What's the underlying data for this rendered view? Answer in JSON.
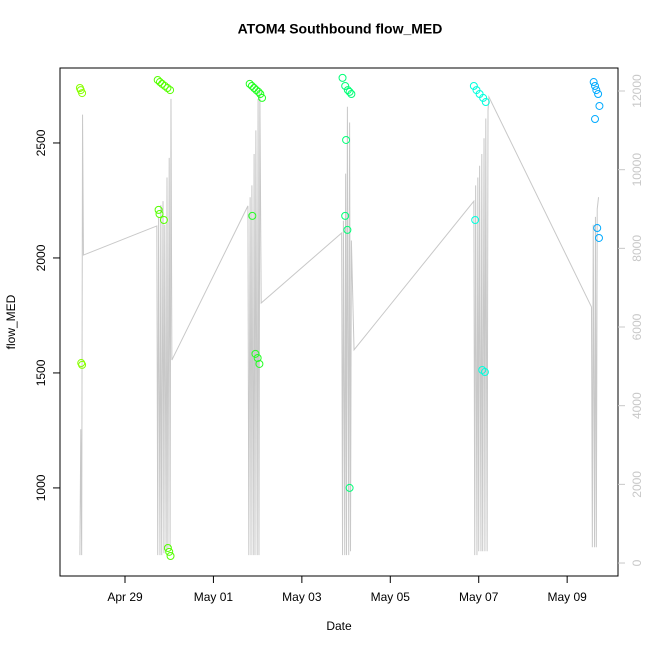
{
  "chart_data": {
    "type": "scatter",
    "title": "ATOM4 Southbound flow_MED",
    "xlabel": "Date",
    "ylabel": "flow_MED",
    "xlim": [
      117.53,
      130.15
    ],
    "xticks": [
      {
        "value": 119,
        "label": "Apr 29"
      },
      {
        "value": 121,
        "label": "May 01"
      },
      {
        "value": 123,
        "label": "May 03"
      },
      {
        "value": 125,
        "label": "May 05"
      },
      {
        "value": 127,
        "label": "May 07"
      },
      {
        "value": 129,
        "label": "May 09"
      }
    ],
    "ylim": [
      617,
      2826
    ],
    "yticks": [
      1000,
      1500,
      2000,
      2500
    ],
    "y2lim": [
      -330,
      12585
    ],
    "y2ticks": [
      0,
      2000,
      4000,
      6000,
      8000,
      10000,
      12000
    ],
    "series": [
      {
        "type": "line",
        "axis": "y2",
        "color": "#c8c8c8",
        "x": [
          117.98,
          118.0,
          118.02,
          118.04,
          118.06,
          119.72,
          119.74,
          119.76,
          119.79,
          119.81,
          119.83,
          119.86,
          119.88,
          119.9,
          119.93,
          119.95,
          119.97,
          120.0,
          120.02,
          120.04,
          120.06,
          121.78,
          121.8,
          121.83,
          121.85,
          121.87,
          121.9,
          121.92,
          121.94,
          121.96,
          121.99,
          122.01,
          122.03,
          122.05,
          122.08,
          123.9,
          123.92,
          123.94,
          123.97,
          123.99,
          124.01,
          124.03,
          124.06,
          124.08,
          124.1,
          124.12,
          124.18,
          126.89,
          126.91,
          126.93,
          126.96,
          126.98,
          127.0,
          127.02,
          127.05,
          127.07,
          127.09,
          127.12,
          127.14,
          127.16,
          127.19,
          127.21,
          127.23,
          129.55,
          129.57,
          129.59,
          129.62,
          129.64,
          129.66,
          129.68,
          129.71
        ],
        "values": [
          200,
          3400,
          200,
          11400,
          7830,
          8570,
          200,
          8800,
          200,
          9100,
          200,
          9200,
          250,
          8600,
          300,
          9800,
          350,
          10300,
          400,
          11800,
          5160,
          9080,
          200,
          9300,
          200,
          9600,
          200,
          10400,
          200,
          11000,
          200,
          11800,
          200,
          12000,
          6610,
          8390,
          200,
          8700,
          200,
          9900,
          200,
          11600,
          200,
          11200,
          300,
          8200,
          5420,
          9200,
          200,
          9600,
          200,
          9800,
          300,
          10100,
          300,
          10400,
          300,
          10800,
          300,
          11300,
          300,
          11500,
          11850,
          6510,
          400,
          8600,
          400,
          8800,
          400,
          9000,
          9300
        ]
      },
      {
        "color": "#88ff00",
        "x": [
          117.98,
          118.0,
          118.03,
          118.01,
          118.03
        ],
        "values": [
          2739,
          2730,
          2717,
          1543,
          1535
        ]
      },
      {
        "color": "#55ff00",
        "x": [
          119.74,
          119.79,
          119.84,
          119.9,
          119.96,
          120.02,
          119.76,
          119.78,
          119.88,
          119.97,
          120.0,
          120.03
        ],
        "values": [
          2774,
          2765,
          2757,
          2748,
          2739,
          2730,
          2209,
          2191,
          2165,
          739,
          722,
          704
        ]
      },
      {
        "color": "#22ff22",
        "x": [
          121.82,
          121.87,
          121.92,
          121.97,
          122.02,
          122.06,
          122.1,
          121.88,
          121.95,
          122.0,
          122.04
        ],
        "values": [
          2757,
          2748,
          2739,
          2730,
          2722,
          2713,
          2696,
          2183,
          1583,
          1565,
          1539
        ]
      },
      {
        "color": "#00ff77",
        "x": [
          123.92,
          123.98,
          124.04,
          124.08,
          124.12,
          124.0,
          123.98,
          124.03,
          124.08
        ],
        "values": [
          2783,
          2748,
          2730,
          2722,
          2713,
          2513,
          2183,
          2122,
          1000
        ]
      },
      {
        "color": "#00ffdd",
        "x": [
          126.89,
          126.95,
          127.02,
          127.1,
          127.16,
          126.92,
          127.08,
          127.14
        ],
        "values": [
          2748,
          2730,
          2713,
          2696,
          2678,
          2165,
          1513,
          1504
        ]
      },
      {
        "color": "#00aaff",
        "x": [
          129.6,
          129.63,
          129.66,
          129.7,
          129.73,
          129.63,
          129.68,
          129.72
        ],
        "values": [
          2765,
          2748,
          2730,
          2713,
          2661,
          2604,
          2130,
          2087
        ]
      }
    ]
  }
}
